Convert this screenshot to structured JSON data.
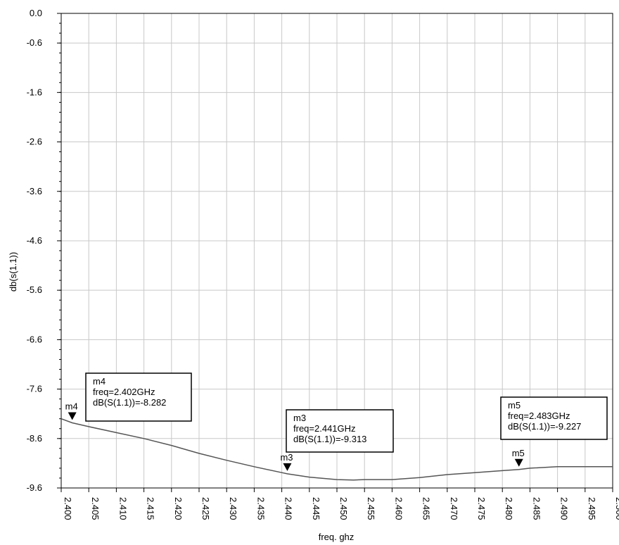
{
  "chart_data": {
    "type": "line",
    "title": "",
    "xlabel": "freq. ghz",
    "ylabel": "db(s(1.1))",
    "xlim": [
      2.4,
      2.5
    ],
    "ylim": [
      -9.6,
      0.0
    ],
    "grid": true,
    "x_ticks": [
      "2.400",
      "2.405",
      "2.410",
      "2.415",
      "2.420",
      "2.425",
      "2.430",
      "2.435",
      "2.440",
      "2.445",
      "2.450",
      "2.455",
      "2.460",
      "2.465",
      "2.470",
      "2.475",
      "2.480",
      "2.485",
      "2.490",
      "2.495",
      "2.500"
    ],
    "y_ticks": [
      "0.0",
      "-0.6",
      "-1.6",
      "-2.6",
      "-3.6",
      "-4.6",
      "-5.6",
      "-6.6",
      "-7.6",
      "-8.6",
      "-9.6"
    ],
    "y_tick_values": [
      0.0,
      -0.6,
      -1.6,
      -2.6,
      -3.6,
      -4.6,
      -5.6,
      -6.6,
      -7.6,
      -8.6,
      -9.6
    ],
    "series": [
      {
        "color": "#555555",
        "x": [
          2.4,
          2.402,
          2.405,
          2.41,
          2.415,
          2.42,
          2.425,
          2.43,
          2.435,
          2.44,
          2.441,
          2.445,
          2.45,
          2.453,
          2.455,
          2.46,
          2.465,
          2.47,
          2.475,
          2.48,
          2.483,
          2.485,
          2.49,
          2.495,
          2.5
        ],
        "y": [
          -8.2,
          -8.282,
          -8.36,
          -8.48,
          -8.6,
          -8.74,
          -8.9,
          -9.04,
          -9.17,
          -9.29,
          -9.313,
          -9.38,
          -9.43,
          -9.44,
          -9.43,
          -9.43,
          -9.39,
          -9.33,
          -9.29,
          -9.25,
          -9.227,
          -9.2,
          -9.17,
          -9.17,
          -9.17
        ]
      }
    ],
    "markers": [
      {
        "id": "m4",
        "freq": 2.402,
        "value": -8.282,
        "lines": [
          "m4",
          "freq=2.402GHz",
          "dB(S(1.1))=-8.282"
        ]
      },
      {
        "id": "m3",
        "freq": 2.441,
        "value": -9.313,
        "lines": [
          "m3",
          "freq=2.441GHz",
          "dB(S(1.1))=-9.313"
        ]
      },
      {
        "id": "m5",
        "freq": 2.483,
        "value": -9.227,
        "lines": [
          "m5",
          "freq=2.483GHz",
          "dB(S(1.1))=-9.227"
        ]
      }
    ]
  }
}
